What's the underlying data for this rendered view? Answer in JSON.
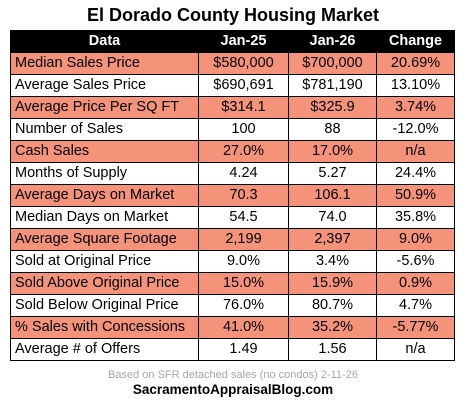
{
  "title": "El Dorado County Housing Market",
  "columns": [
    "Data",
    "Jan-25",
    "Jan-26",
    "Change"
  ],
  "rows": [
    {
      "label": "Median Sales Price",
      "jan25": "$580,000",
      "jan26": "$700,000",
      "change": "20.69%",
      "shade": true
    },
    {
      "label": "Average Sales Price",
      "jan25": "$690,691",
      "jan26": "$781,190",
      "change": "13.10%",
      "shade": false
    },
    {
      "label": "Average Price Per SQ FT",
      "jan25": "$314.1",
      "jan26": "$325.9",
      "change": "3.74%",
      "shade": true
    },
    {
      "label": "Number of Sales",
      "jan25": "100",
      "jan26": "88",
      "change": "-12.0%",
      "shade": false
    },
    {
      "label": "Cash Sales",
      "jan25": "27.0%",
      "jan26": "17.0%",
      "change": "n/a",
      "shade": true
    },
    {
      "label": "Months of Supply",
      "jan25": "4.24",
      "jan26": "5.27",
      "change": "24.4%",
      "shade": false
    },
    {
      "label": "Average Days on Market",
      "jan25": "70.3",
      "jan26": "106.1",
      "change": "50.9%",
      "shade": true
    },
    {
      "label": "Median Days on Market",
      "jan25": "54.5",
      "jan26": "74.0",
      "change": "35.8%",
      "shade": false
    },
    {
      "label": "Average Square Footage",
      "jan25": "2,199",
      "jan26": "2,397",
      "change": "9.0%",
      "shade": true
    },
    {
      "label": "Sold at Original Price",
      "jan25": "9.0%",
      "jan26": "3.4%",
      "change": "-5.6%",
      "shade": false
    },
    {
      "label": "Sold Above Original Price",
      "jan25": "15.0%",
      "jan26": "15.9%",
      "change": "0.9%",
      "shade": true
    },
    {
      "label": "Sold Below Original Price",
      "jan25": "76.0%",
      "jan26": "80.7%",
      "change": "4.7%",
      "shade": false
    },
    {
      "label": "% Sales with Concessions",
      "jan25": "41.0%",
      "jan26": "35.2%",
      "change": "-5.77%",
      "shade": true
    },
    {
      "label": "Average # of Offers",
      "jan25": "1.49",
      "jan26": "1.56",
      "change": "n/a",
      "shade": false
    }
  ],
  "footnote": "Based on SFR detached sales (no condos) 2-11-26",
  "site": "SacramentoAppraisalBlog.com",
  "colors": {
    "header_bg": "#000000",
    "shade_row": "#f4937a",
    "plain_row": "#ffffff"
  }
}
